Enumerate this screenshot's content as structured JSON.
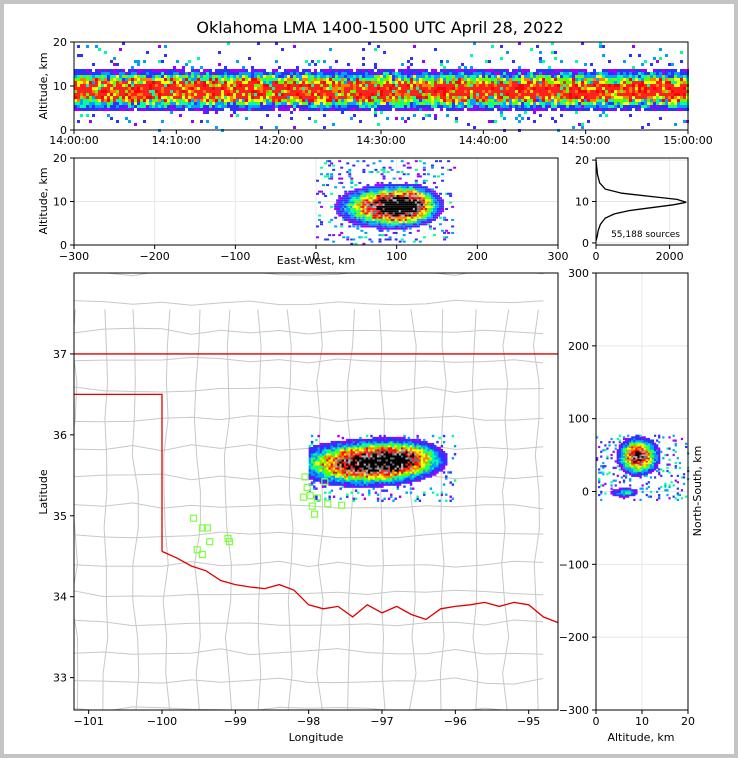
{
  "title": "Oklahoma LMA 1400-1500 UTC April 28, 2022",
  "colors": {
    "state_border": "#e00000",
    "county_border": "#c8c8c8",
    "station": "#80ff40"
  },
  "chart_data": [
    {
      "id": "time-height",
      "type": "heatmap",
      "title": "",
      "ylabel": "Altitude, km",
      "ylim": [
        0,
        20
      ],
      "yticks": [
        "0",
        "10",
        "20"
      ],
      "xticks": [
        "14:00:00",
        "14:10:00",
        "14:20:00",
        "14:30:00",
        "14:40:00",
        "14:50:00",
        "15:00:00"
      ],
      "description_of_values": "source density vs time and altitude; core 7-12 km throughout hour"
    },
    {
      "id": "ew-height",
      "type": "heatmap",
      "xlabel": "East-West, km",
      "ylabel": "Altitude, km",
      "xlim": [
        -300,
        300
      ],
      "ylim": [
        0,
        20
      ],
      "xticks": [
        "−300",
        "−200",
        "−100",
        "0",
        "100",
        "200",
        "300"
      ],
      "yticks": [
        "0",
        "10",
        "20"
      ]
    },
    {
      "id": "alt-histogram",
      "type": "line",
      "xlim": [
        0,
        2500
      ],
      "ylim": [
        0,
        20
      ],
      "xticks": [
        "0",
        "2000"
      ],
      "yticks": [
        "0",
        "10",
        "20"
      ],
      "annotation": "55,188 sources",
      "x": [
        0,
        30,
        60,
        120,
        250,
        500,
        900,
        1500,
        2100,
        2450,
        2200,
        1500,
        700,
        250,
        100,
        40,
        0
      ],
      "y": [
        0.5,
        1.5,
        3,
        4.5,
        6,
        7,
        7.8,
        8.5,
        9.2,
        9.8,
        10.5,
        11.2,
        12,
        13,
        14.5,
        16.5,
        20
      ]
    },
    {
      "id": "plan-map",
      "type": "scatter",
      "xlabel": "Longitude",
      "ylabel": "Latitude",
      "xlim": [
        -101.2,
        -94.6
      ],
      "ylim": [
        32.6,
        38
      ],
      "xticks": [
        "−101",
        "−100",
        "−99",
        "−98",
        "−97",
        "−96",
        "−95"
      ],
      "yticks": [
        "33",
        "34",
        "35",
        "36",
        "37"
      ],
      "stations_lon": [
        -99.57,
        -99.45,
        -99.38,
        -99.35,
        -99.52,
        -99.45,
        -99.1,
        -99.08,
        -98.05,
        -98.02,
        -97.98,
        -97.95,
        -97.92,
        -97.88,
        -97.78,
        -97.74,
        -97.55,
        -98.07
      ],
      "stations_lat": [
        34.97,
        34.85,
        34.85,
        34.68,
        34.58,
        34.52,
        34.72,
        34.68,
        35.48,
        35.35,
        35.25,
        35.12,
        35.02,
        35.22,
        35.42,
        35.15,
        35.13,
        35.23
      ]
    },
    {
      "id": "ns-height",
      "type": "heatmap",
      "xlabel": "Altitude, km",
      "ylabel": "North-South, km",
      "xlim": [
        0,
        20
      ],
      "ylim": [
        -300,
        300
      ],
      "xticks": [
        "0",
        "10",
        "20"
      ],
      "yticks": [
        "−300",
        "−200",
        "−100",
        "0",
        "100",
        "200",
        "300"
      ]
    }
  ]
}
